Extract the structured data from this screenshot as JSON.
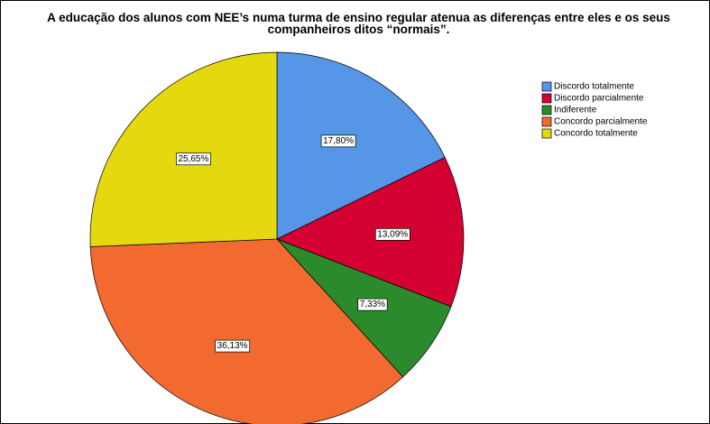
{
  "chart_data": {
    "type": "pie",
    "title": "A educação dos alunos com NEE’s numa turma de ensino regular atenua as diferenças entre eles e os seus companheiros ditos “normais”.",
    "categories": [
      "Discordo totalmente",
      "Discordo parcialmente",
      "Indiferente",
      "Concordo parcialmente",
      "Concordo totalmente"
    ],
    "values": [
      17.8,
      13.09,
      7.33,
      36.13,
      25.65
    ],
    "value_labels": [
      "17,80%",
      "13,09%",
      "7,33%",
      "36,13%",
      "25,65%"
    ],
    "colors": [
      "#5596e6",
      "#d50032",
      "#2b8a2b",
      "#f26a2f",
      "#e4d80f"
    ],
    "legend": "upper right"
  }
}
